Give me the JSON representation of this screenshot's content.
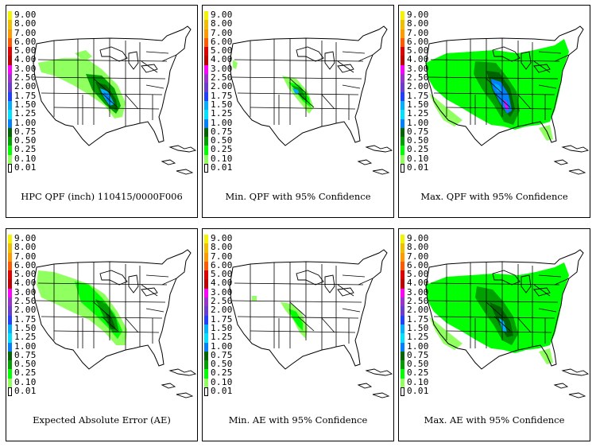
{
  "legend": {
    "levels": [
      "9.00",
      "8.00",
      "7.00",
      "6.00",
      "5.00",
      "4.00",
      "3.00",
      "2.50",
      "2.00",
      "1.75",
      "1.50",
      "1.25",
      "1.00",
      "0.75",
      "0.50",
      "0.25",
      "0.10",
      "0.01"
    ],
    "colors": [
      "#f4f400",
      "#f0c000",
      "#ff9a00",
      "#ff5a00",
      "#e00000",
      "#c00000",
      "#ff00ff",
      "#9a32cd",
      "#6a3cd0",
      "#2040ff",
      "#00b0ff",
      "#00e0ff",
      "#0080ff",
      "#006400",
      "#00a000",
      "#00ff00",
      "#90ff60",
      "#ffffff"
    ]
  },
  "panels": [
    {
      "caption": "HPC QPF (inch) 110415/0000F006",
      "precip": "qpf"
    },
    {
      "caption": "Min. QPF with 95% Confidence",
      "precip": "minqpf"
    },
    {
      "caption": "Max. QPF with 95% Confidence",
      "precip": "maxqpf"
    },
    {
      "caption": "Expected Absolute Error (AE)",
      "precip": "ae"
    },
    {
      "caption": "Min. AE with 95% Confidence",
      "precip": "minae"
    },
    {
      "caption": "Max. AE with 95% Confidence",
      "precip": "maxae"
    }
  ]
}
